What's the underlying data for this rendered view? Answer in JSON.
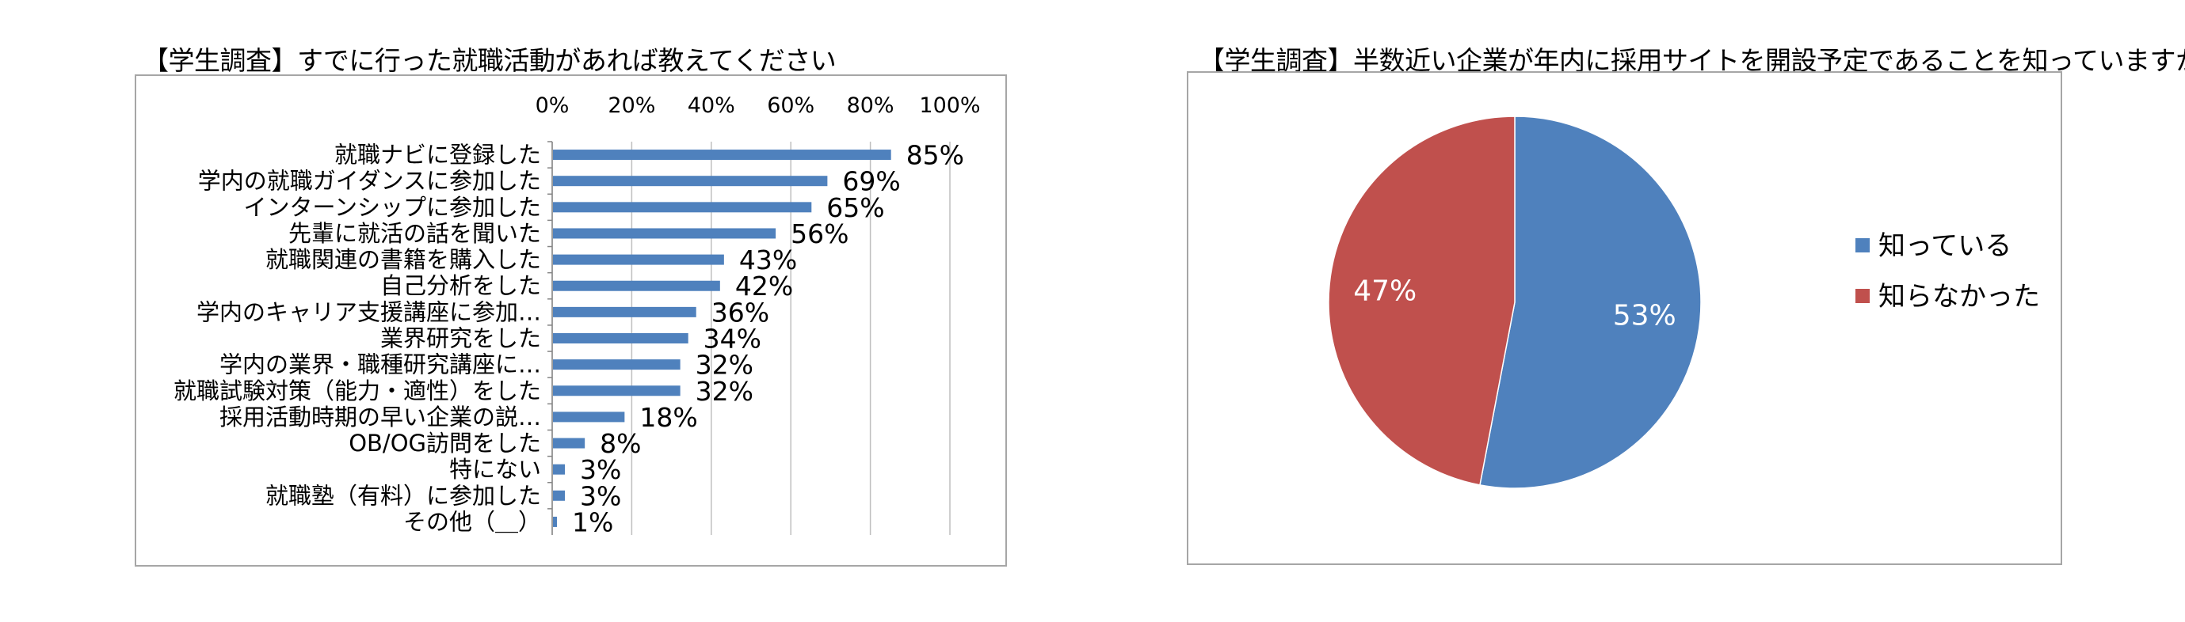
{
  "colors": {
    "bar": "#4f81bd",
    "grid": "#bfbfbf",
    "slice_blue": "#4f81bd",
    "slice_red": "#c0504d",
    "slice_label": "#ffffff"
  },
  "chart_data": [
    {
      "type": "bar",
      "orientation": "horizontal",
      "title": "【学生調査】すでに行った就職活動があれば教えてください",
      "categories": [
        "就職ナビに登録した",
        "学内の就職ガイダンスに参加した",
        "インターンシップに参加した",
        "先輩に就活の話を聞いた",
        "就職関連の書籍を購入した",
        "自己分析をした",
        "学内のキャリア支援講座に参加…",
        "業界研究をした",
        "学内の業界・職種研究講座に…",
        "就職試験対策（能力・適性）をした",
        "採用活動時期の早い企業の説…",
        "OB/OG訪問をした",
        "特にない",
        "就職塾（有料）に参加した",
        "その他（＿）"
      ],
      "values": [
        85,
        69,
        65,
        56,
        43,
        42,
        36,
        34,
        32,
        32,
        18,
        8,
        3,
        3,
        1
      ],
      "value_labels": [
        "85%",
        "69%",
        "65%",
        "56%",
        "43%",
        "42%",
        "36%",
        "34%",
        "32%",
        "32%",
        "18%",
        "8%",
        "3%",
        "3%",
        "1%"
      ],
      "xlim": [
        0,
        100
      ],
      "x_ticks": [
        "0%",
        "20%",
        "40%",
        "60%",
        "80%",
        "100%"
      ],
      "x_axis_position": "top",
      "grid": true
    },
    {
      "type": "pie",
      "title": "【学生調査】半数近い企業が年内に採用サイトを開設予定であることを知っていますか",
      "slices": [
        {
          "name": "知っている",
          "value": 53,
          "label": "53%"
        },
        {
          "name": "知らなかった",
          "value": 47,
          "label": "47%"
        }
      ],
      "legend_position": "right"
    }
  ]
}
